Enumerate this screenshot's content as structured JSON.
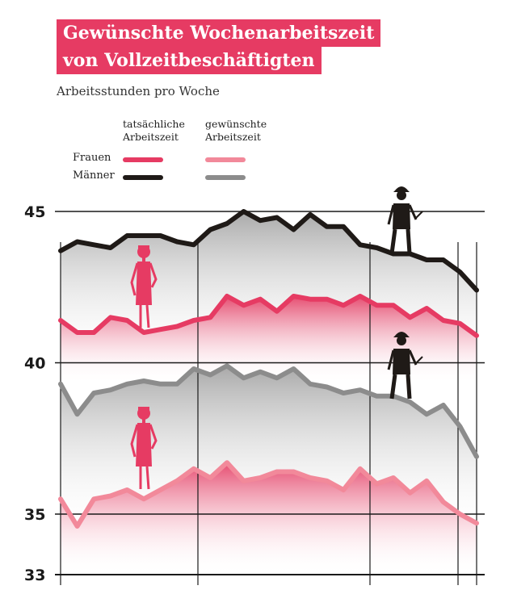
{
  "title": {
    "line1": "Gewünschte Wochenarbeitszeit",
    "line2": "von Vollzeitbeschäftigten"
  },
  "subtitle": "Arbeitsstunden pro Woche",
  "legend": {
    "actual_header_1": "tatsächliche",
    "actual_header_2": "Arbeitszeit",
    "desired_header_1": "gewünschte",
    "desired_header_2": "Arbeitszeit",
    "women_label": "Frauen",
    "men_label": "Männer"
  },
  "colors": {
    "women_actual": "#e63b63",
    "women_desired": "#f2899a",
    "men_actual": "#1f1a17",
    "men_desired": "#8c8c8c",
    "title_bg": "#e63b63"
  },
  "chart_data": {
    "type": "line",
    "title": "Gewünschte Wochenarbeitszeit von Vollzeitbeschäftigten",
    "ylabel": "Arbeitsstunden pro Woche",
    "xlabel": "",
    "ylim": [
      33,
      45.5
    ],
    "yticks": [
      33,
      35,
      40,
      45
    ],
    "x": [
      1,
      2,
      3,
      4,
      5,
      6,
      7,
      8,
      9,
      10,
      11,
      12,
      13,
      14,
      15,
      16,
      17,
      18,
      19,
      20,
      21,
      22,
      23,
      24,
      25,
      26
    ],
    "series": [
      {
        "name": "Männer – tatsächliche Arbeitszeit",
        "key": "men_actual",
        "values": [
          43.7,
          44.0,
          43.9,
          43.8,
          44.2,
          44.2,
          44.2,
          44.0,
          43.9,
          44.4,
          44.6,
          45.0,
          44.7,
          44.8,
          44.4,
          44.9,
          44.5,
          44.5,
          43.9,
          43.8,
          43.6,
          43.6,
          43.4,
          43.4,
          43.0,
          42.4
        ]
      },
      {
        "name": "Frauen – tatsächliche Arbeitszeit",
        "key": "women_actual",
        "values": [
          41.4,
          41.0,
          41.0,
          41.5,
          41.4,
          41.0,
          41.1,
          41.2,
          41.4,
          41.5,
          42.2,
          41.9,
          42.1,
          41.7,
          42.2,
          42.1,
          42.1,
          41.9,
          42.2,
          41.9,
          41.9,
          41.5,
          41.8,
          41.4,
          41.3,
          40.9
        ]
      },
      {
        "name": "Männer – gewünschte Arbeitszeit",
        "key": "men_desired",
        "values": [
          39.3,
          38.3,
          39.0,
          39.1,
          39.3,
          39.4,
          39.3,
          39.3,
          39.8,
          39.6,
          39.9,
          39.5,
          39.7,
          39.5,
          39.8,
          39.3,
          39.2,
          39.0,
          39.1,
          38.9,
          38.9,
          38.7,
          38.3,
          38.6,
          37.9,
          36.9
        ]
      },
      {
        "name": "Frauen – gewünschte Arbeitszeit",
        "key": "women_desired",
        "values": [
          35.5,
          34.6,
          35.5,
          35.6,
          35.8,
          35.5,
          35.8,
          36.1,
          36.5,
          36.2,
          36.7,
          36.1,
          36.2,
          36.4,
          36.4,
          36.2,
          36.1,
          35.8,
          36.5,
          36.0,
          36.2,
          35.7,
          36.1,
          35.4,
          35.0,
          34.7
        ]
      }
    ]
  }
}
